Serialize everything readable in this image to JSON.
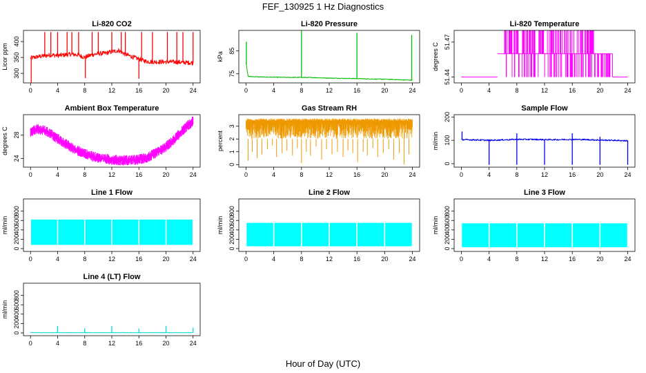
{
  "title": "FEF_130925  1 Hz Diagnostics",
  "xlabel": "Hour of Day (UTC)",
  "chart_data": [
    {
      "id": "co2",
      "type": "line",
      "title": "Li-820 CO2",
      "ylabel": "Licor ppm",
      "color": "#ff0000",
      "xlim": [
        0,
        24
      ],
      "ylim": [
        270,
        435
      ],
      "xticks": [
        0,
        4,
        8,
        12,
        16,
        20,
        24
      ],
      "yticks": [
        300,
        350,
        400
      ],
      "series": [
        {
          "x": [
            0,
            1,
            2,
            3,
            4,
            5,
            6,
            7,
            8,
            9,
            10,
            11,
            12,
            13,
            14,
            15,
            16,
            17,
            18,
            19,
            20,
            21,
            22,
            23,
            24
          ],
          "values": [
            348,
            352,
            355,
            358,
            356,
            358,
            360,
            358,
            350,
            358,
            362,
            363,
            368,
            372,
            360,
            352,
            345,
            338,
            336,
            336,
            336,
            336,
            335,
            334,
            333
          ]
        }
      ],
      "spikes": [
        [
          0.1,
          270
        ],
        [
          2.1,
          430
        ],
        [
          3.0,
          430
        ],
        [
          4.0,
          430
        ],
        [
          5.4,
          430
        ],
        [
          6.1,
          430
        ],
        [
          7.1,
          430
        ],
        [
          8.1,
          285
        ],
        [
          9.1,
          430
        ],
        [
          10.0,
          430
        ],
        [
          12.0,
          430
        ],
        [
          13.4,
          430
        ],
        [
          14.0,
          430
        ],
        [
          16.0,
          283
        ],
        [
          16.4,
          430
        ],
        [
          18.0,
          430
        ],
        [
          20.2,
          430
        ],
        [
          21.6,
          430
        ],
        [
          22.5,
          430
        ],
        [
          24.0,
          430
        ]
      ]
    },
    {
      "id": "pressure",
      "type": "line",
      "title": "Li-820 Pressure",
      "ylabel": "kPa",
      "color": "#00bb00",
      "xlim": [
        0,
        24
      ],
      "ylim": [
        71,
        94
      ],
      "xticks": [
        0,
        4,
        8,
        12,
        16,
        20,
        24
      ],
      "yticks": [
        75,
        85
      ],
      "series": [
        {
          "x": [
            0,
            0.3,
            2,
            4,
            6,
            8,
            10,
            12,
            14,
            16,
            18,
            20,
            22,
            23.8
          ],
          "values": [
            80,
            73.8,
            73.6,
            73.5,
            73.4,
            73.4,
            73.3,
            73.1,
            73.0,
            72.9,
            72.7,
            72.6,
            72.4,
            72.2
          ]
        }
      ],
      "spikes": [
        [
          0.05,
          89
        ],
        [
          8.0,
          94
        ],
        [
          16.0,
          93
        ],
        [
          23.9,
          92
        ]
      ]
    },
    {
      "id": "licor-temp",
      "type": "line",
      "title": "Li-820 Temperature",
      "ylabel": "degrees C",
      "color": "#ff00ff",
      "xlim": [
        0,
        24
      ],
      "ylim": [
        51.435,
        51.48
      ],
      "xticks": [
        0,
        4,
        8,
        12,
        16,
        20,
        24
      ],
      "yticks": [
        51.44,
        51.47
      ],
      "levels": [
        51.44,
        51.46,
        51.48
      ],
      "step_segments": [
        [
          0,
          5.2,
          51.44
        ],
        [
          5.2,
          6.2,
          51.46
        ],
        [
          6.2,
          19.5,
          51.46
        ],
        [
          19.5,
          21.8,
          51.46
        ],
        [
          21.8,
          24,
          51.44
        ]
      ],
      "toggle_ranges": [
        [
          6.2,
          7.4
        ],
        [
          7.6,
          8.6
        ],
        [
          8.6,
          19.2
        ]
      ],
      "toggle_ranges_low": [
        [
          19.2,
          21.8
        ]
      ]
    },
    {
      "id": "ambient-temp",
      "type": "line",
      "title": "Ambient Box Temperature",
      "ylabel": "degrees C",
      "color": "#ff00ff",
      "xlim": [
        0,
        24
      ],
      "ylim": [
        22.5,
        31.5
      ],
      "xticks": [
        0,
        4,
        8,
        12,
        16,
        20,
        24
      ],
      "yticks": [
        24,
        28
      ],
      "band": 0.9,
      "series": [
        {
          "x": [
            0,
            1,
            2,
            3,
            4,
            5,
            6,
            7,
            8,
            9,
            10,
            11,
            12,
            13,
            14,
            15,
            16,
            17,
            18,
            19,
            20,
            21,
            22,
            23,
            24
          ],
          "values": [
            28.5,
            29.0,
            28.8,
            28.2,
            27.4,
            26.6,
            25.9,
            25.3,
            24.8,
            24.4,
            24.1,
            23.9,
            23.8,
            23.7,
            23.7,
            23.7,
            23.8,
            24.1,
            24.6,
            25.2,
            26.0,
            27.0,
            28.2,
            29.4,
            30.4
          ]
        }
      ]
    },
    {
      "id": "rh",
      "type": "line",
      "title": "Gas Stream RH",
      "ylabel": "percent",
      "color": "#ee9900",
      "xlim": [
        0,
        24
      ],
      "ylim": [
        -0.2,
        3.9
      ],
      "xticks": [
        0,
        4,
        8,
        12,
        16,
        20,
        24
      ],
      "yticks": [
        0,
        1,
        2,
        3
      ],
      "band_top": 3.5,
      "band_bottom": 2.0,
      "dips": [
        [
          0.3,
          0.3
        ],
        [
          0.9,
          1.0
        ],
        [
          1.6,
          0.5
        ],
        [
          2.3,
          0.8
        ],
        [
          3.1,
          1.2
        ],
        [
          3.8,
          1.5
        ],
        [
          4.4,
          0.6
        ],
        [
          5.2,
          0.9
        ],
        [
          5.9,
          1.1
        ],
        [
          6.7,
          0.7
        ],
        [
          7.4,
          1.3
        ],
        [
          8.0,
          0.1
        ],
        [
          8.7,
          1.0
        ],
        [
          9.3,
          0.7
        ],
        [
          10.1,
          1.4
        ],
        [
          10.9,
          0.4
        ],
        [
          11.6,
          1.2
        ],
        [
          12.4,
          0.8
        ],
        [
          13.2,
          1.0
        ],
        [
          14.0,
          0.6
        ],
        [
          14.7,
          1.1
        ],
        [
          15.4,
          0.9
        ],
        [
          16.1,
          0.2
        ],
        [
          16.9,
          1.0
        ],
        [
          17.5,
          0.7
        ],
        [
          18.3,
          1.3
        ],
        [
          19.0,
          0.6
        ],
        [
          19.8,
          0.9
        ],
        [
          20.6,
          1.2
        ],
        [
          21.3,
          0.4
        ],
        [
          22.1,
          0.9
        ],
        [
          22.8,
          0.0
        ],
        [
          23.5,
          0.8
        ]
      ]
    },
    {
      "id": "sample-flow",
      "type": "line",
      "title": "Sample Flow",
      "ylabel": "ml/min",
      "color": "#0000ee",
      "xlim": [
        0,
        24
      ],
      "ylim": [
        -15,
        210
      ],
      "xticks": [
        0,
        4,
        8,
        12,
        16,
        20,
        24
      ],
      "yticks": [
        0,
        100,
        200
      ],
      "series": [
        {
          "x": [
            0,
            2,
            4,
            6,
            8,
            10,
            12,
            14,
            16,
            18,
            20,
            22,
            24
          ],
          "values": [
            103,
            102,
            100,
            102,
            104,
            104,
            103,
            103,
            104,
            103,
            101,
            100,
            98
          ]
        }
      ],
      "spikes_up": [
        [
          0.1,
          138
        ],
        [
          8.0,
          130
        ],
        [
          16.0,
          130
        ],
        [
          20.0,
          115
        ]
      ],
      "spikes_down": [
        [
          4.0,
          -5
        ],
        [
          8.0,
          -5
        ],
        [
          12.0,
          -5
        ],
        [
          16.0,
          -5
        ],
        [
          20.0,
          -5
        ],
        [
          24.0,
          -5
        ]
      ]
    },
    {
      "id": "line1-flow",
      "type": "area",
      "title": "Line 1 Flow",
      "ylabel": "ml/min",
      "color": "#00ffff",
      "xlim": [
        0,
        24
      ],
      "ylim": [
        -60,
        1060
      ],
      "xticks": [
        0,
        4,
        8,
        12,
        16,
        20,
        24
      ],
      "yticks": [
        0,
        200,
        400,
        600,
        800
      ],
      "band": [
        80,
        620
      ],
      "gaps": [
        0,
        4,
        8,
        12,
        16,
        20,
        24
      ]
    },
    {
      "id": "line2-flow",
      "type": "area",
      "title": "Line 2 Flow",
      "ylabel": "ml/min",
      "color": "#00ffff",
      "xlim": [
        0,
        24
      ],
      "ylim": [
        -60,
        1060
      ],
      "xticks": [
        0,
        4,
        8,
        12,
        16,
        20,
        24
      ],
      "yticks": [
        0,
        200,
        400,
        600,
        800
      ],
      "band": [
        50,
        550
      ],
      "gaps": [
        0,
        4,
        8,
        12,
        16,
        20,
        24
      ]
    },
    {
      "id": "line3-flow",
      "type": "area",
      "title": "Line 3 Flow",
      "ylabel": "ml/min",
      "color": "#00ffff",
      "xlim": [
        0,
        24
      ],
      "ylim": [
        -60,
        1060
      ],
      "xticks": [
        0,
        4,
        8,
        12,
        16,
        20,
        24
      ],
      "yticks": [
        0,
        200,
        400,
        600,
        800
      ],
      "band": [
        30,
        540
      ],
      "gaps": [
        0,
        4,
        8,
        12,
        16,
        20,
        24
      ]
    },
    {
      "id": "line4-flow",
      "type": "line",
      "title": "Line 4 (LT) Flow",
      "ylabel": "ml/min",
      "color": "#00dddd",
      "xlim": [
        0,
        24
      ],
      "ylim": [
        -60,
        1060
      ],
      "xticks": [
        0,
        4,
        8,
        12,
        16,
        20,
        24
      ],
      "yticks": [
        0,
        200,
        400,
        600,
        800
      ],
      "series": [
        {
          "x": [
            0,
            24
          ],
          "values": [
            5,
            5
          ]
        }
      ],
      "spikes_up": [
        [
          4.0,
          150
        ],
        [
          8.0,
          100
        ],
        [
          12.0,
          145
        ],
        [
          16.0,
          95
        ],
        [
          20.0,
          150
        ],
        [
          24.0,
          110
        ]
      ]
    }
  ]
}
